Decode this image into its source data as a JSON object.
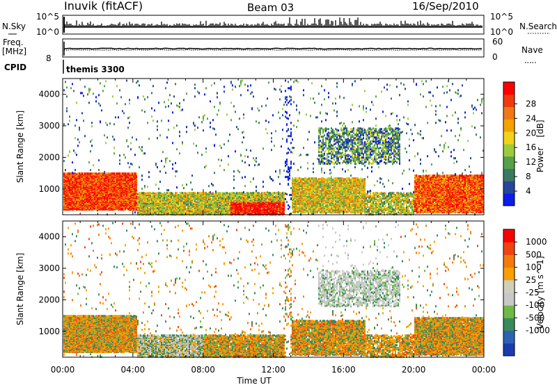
{
  "header": {
    "station": "Inuvik (fitACF)",
    "beam": "Beam 03",
    "date": "16/Sep/2010"
  },
  "panels": {
    "nsky_label": "N.Sky",
    "nsky_ticks": [
      "10^5",
      "10^0"
    ],
    "nsearch_label": "N.Search",
    "nsearch_ticks": [
      "10^5",
      "10^0"
    ],
    "freq_label": "Freq.",
    "freq_unit": "[MHz]",
    "freq_tick": "8",
    "nave_label": "Nave",
    "nave_ticks": [
      "60",
      "0"
    ],
    "cpid_label": "CPID",
    "cpid_value": "themis 3300"
  },
  "colors": {
    "power": [
      "#0b1ee8",
      "#26469c",
      "#3a7a62",
      "#56a04a",
      "#9ccc3c",
      "#f2d21a",
      "#f2a300",
      "#f07814",
      "#ef3a10",
      "#ff0000"
    ],
    "velocity": [
      "#1a3ab0",
      "#2d62b4",
      "#3a8a5c",
      "#6fba46",
      "#c8c8c8",
      "#cfcfbc",
      "#f7a000",
      "#f47a0c",
      "#f04410",
      "#ff0000"
    ]
  },
  "chart_data": [
    {
      "type": "heatmap",
      "title": "",
      "xlabel": "Time UT",
      "ylabel": "Slant Range [km]",
      "x_ticks": [
        "00:00",
        "04:00",
        "08:00",
        "12:00",
        "16:00",
        "20:00",
        "00:00"
      ],
      "y_ticks": [
        "1000",
        "2000",
        "3000",
        "4000"
      ],
      "xlim_hours": [
        0,
        24
      ],
      "ylim_km": [
        180,
        4500
      ],
      "colorbar": {
        "label": "Power",
        "unit": "[dB]",
        "ticks": [
          "28",
          "24",
          "20",
          "16",
          "12",
          "8",
          "4"
        ],
        "range": [
          0,
          30
        ]
      },
      "features": [
        {
          "t_start": 0.0,
          "t_end": 4.0,
          "r_start": 400,
          "r_end": 1500,
          "value": "20-30 dB"
        },
        {
          "t_start": 4.0,
          "t_end": 12.0,
          "r_start": 200,
          "r_end": 900,
          "value": "12-30 dB"
        },
        {
          "t_start": 9.5,
          "t_end": 12.0,
          "r_start": 200,
          "r_end": 600,
          "value": "28-30 dB"
        },
        {
          "t_start": 13.0,
          "t_end": 17.0,
          "r_start": 300,
          "r_end": 1300,
          "value": "12-28 dB"
        },
        {
          "t_start": 14.5,
          "t_end": 19.0,
          "r_start": 1800,
          "r_end": 2900,
          "value": "4-20 dB"
        },
        {
          "t_start": 20.0,
          "t_end": 24.0,
          "r_start": 300,
          "r_end": 1400,
          "value": "20-30 dB"
        }
      ]
    },
    {
      "type": "heatmap",
      "title": "",
      "xlabel": "Time UT",
      "ylabel": "Slant Range [km]",
      "x_ticks": [
        "00:00",
        "04:00",
        "08:00",
        "12:00",
        "16:00",
        "20:00",
        "00:00"
      ],
      "y_ticks": [
        "1000",
        "2000",
        "3000",
        "4000"
      ],
      "xlim_hours": [
        0,
        24
      ],
      "ylim_km": [
        180,
        4500
      ],
      "colorbar": {
        "label": "Velocity",
        "unit": "[m s^-1]",
        "ticks": [
          "1000",
          "500",
          "100",
          "25",
          "-25",
          "-100",
          "-500",
          "-1000"
        ],
        "range": [
          -1000,
          1000
        ]
      },
      "features": [
        {
          "t_start": 0.0,
          "t_end": 4.0,
          "r_start": 400,
          "r_end": 1500,
          "value": "-100 to 100 m/s"
        },
        {
          "t_start": 4.0,
          "t_end": 12.0,
          "r_start": 200,
          "r_end": 900,
          "value": "-25 to 100 m/s"
        },
        {
          "t_start": 13.0,
          "t_end": 17.0,
          "r_start": 300,
          "r_end": 1300,
          "value": "-500 to 100 m/s"
        },
        {
          "t_start": 14.5,
          "t_end": 19.0,
          "r_start": 1800,
          "r_end": 2900,
          "value": "-25 to 25 m/s"
        },
        {
          "t_start": 20.0,
          "t_end": 24.0,
          "r_start": 300,
          "r_end": 1400,
          "value": "-500 to 100 m/s"
        }
      ]
    }
  ]
}
